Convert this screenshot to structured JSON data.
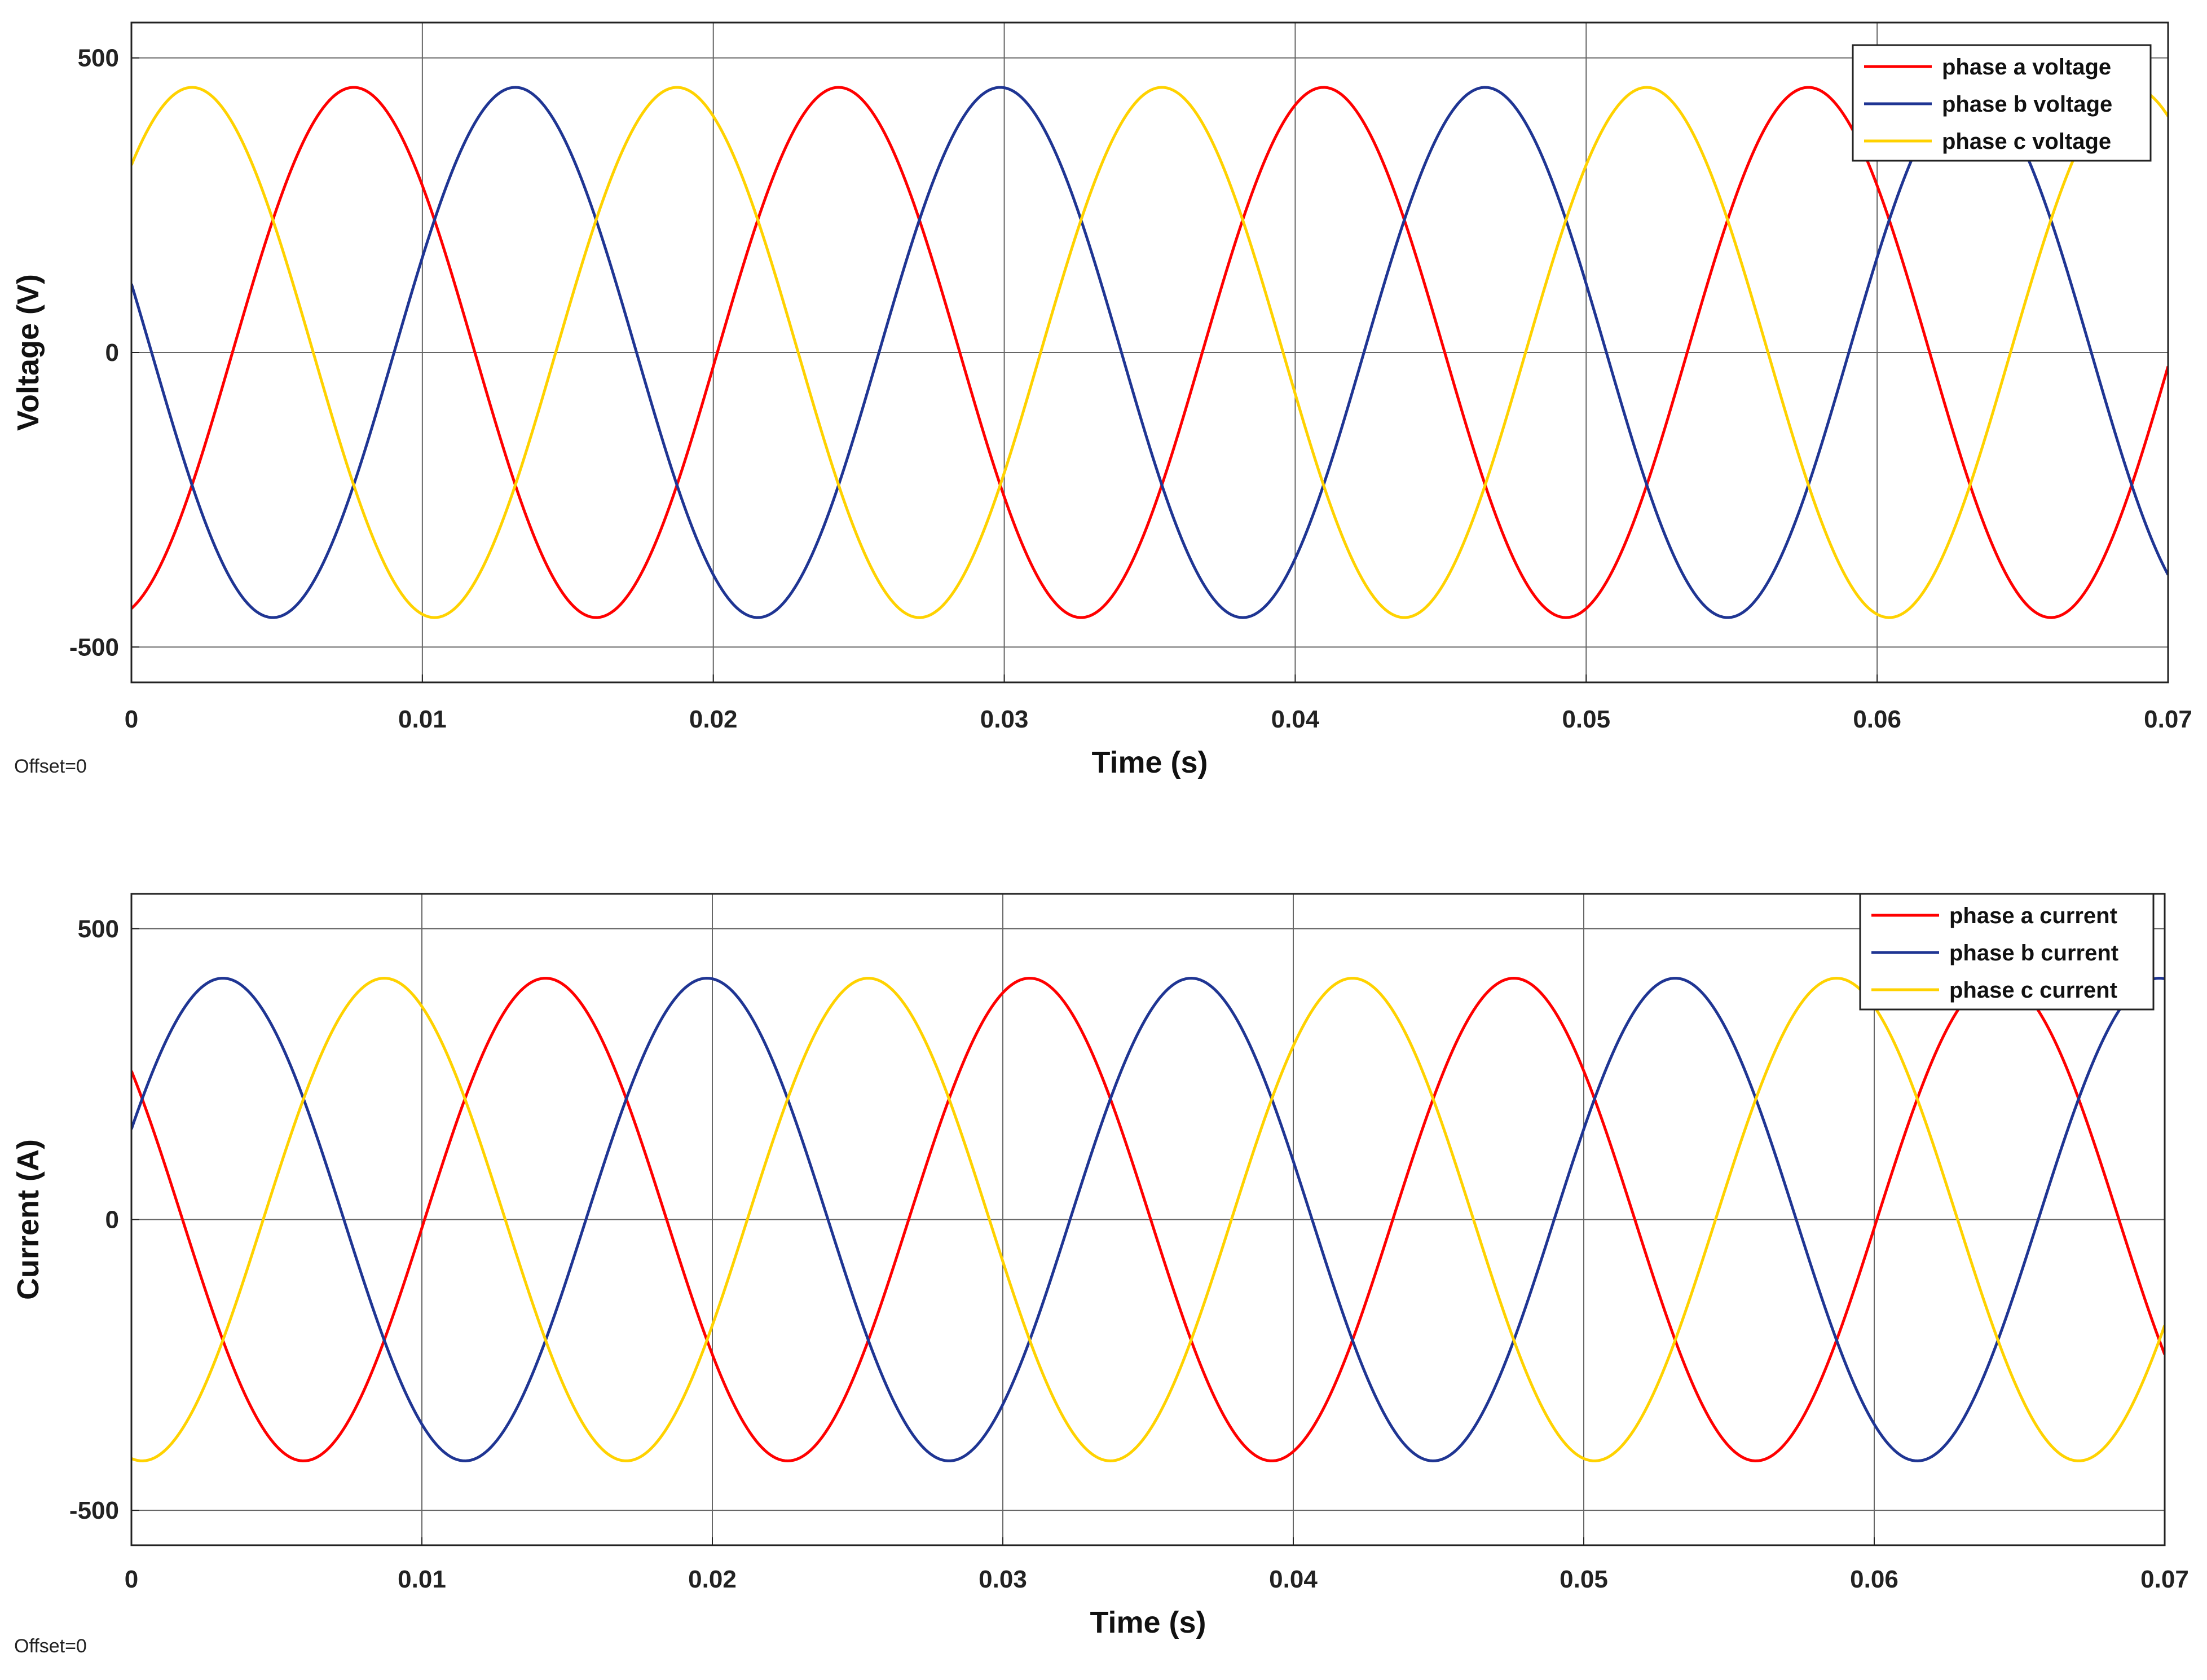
{
  "colors": {
    "phase_a": "#ff0000",
    "phase_b": "#1f3593",
    "phase_c": "#ffd200",
    "grid": "#666666",
    "frame": "#222222"
  },
  "chart_data": [
    {
      "type": "line",
      "xlabel": "Time (s)",
      "ylabel": "Voltage (V)",
      "xlim": [
        0,
        0.07
      ],
      "ylim": [
        -560,
        560
      ],
      "xticks": [
        0,
        0.01,
        0.02,
        0.03,
        0.04,
        0.05,
        0.06,
        0.07
      ],
      "xtick_labels": [
        "0",
        "0.01",
        "0.02",
        "0.03",
        "0.04",
        "0.05",
        "0.06",
        "0.07"
      ],
      "yticks": [
        -500,
        0,
        500
      ],
      "ytick_labels": [
        "-500",
        "0",
        "500"
      ],
      "grid": true,
      "legend": "top-right",
      "offset_label": "Offset=0",
      "x_start": 0,
      "x_end": 0.07,
      "x_step": 0.0001,
      "series": [
        {
          "name": "phase a voltage",
          "amplitude": 450,
          "frequency_hz": 60,
          "phase_deg": -75,
          "color": "#ff0000"
        },
        {
          "name": "phase b voltage",
          "amplitude": 450,
          "frequency_hz": 60,
          "phase_deg": 165,
          "color": "#1f3593"
        },
        {
          "name": "phase c voltage",
          "amplitude": 450,
          "frequency_hz": 60,
          "phase_deg": 45,
          "color": "#ffd200"
        }
      ]
    },
    {
      "type": "line",
      "xlabel": "Time (s)",
      "ylabel": "Current (A)",
      "xlim": [
        0,
        0.07
      ],
      "ylim": [
        -560,
        560
      ],
      "xticks": [
        0,
        0.01,
        0.02,
        0.03,
        0.04,
        0.05,
        0.06,
        0.07
      ],
      "xtick_labels": [
        "0",
        "0.01",
        "0.02",
        "0.03",
        "0.04",
        "0.05",
        "0.06",
        "0.07"
      ],
      "yticks": [
        -500,
        0,
        500
      ],
      "ytick_labels": [
        "-500",
        "0",
        "500"
      ],
      "grid": true,
      "legend": "top-right",
      "offset_label": "Offset=0",
      "x_start": 0,
      "x_end": 0.07,
      "x_step": 0.0001,
      "series": [
        {
          "name": "phase a current",
          "amplitude": 415,
          "frequency_hz": 60,
          "phase_deg": 142,
          "color": "#ff0000"
        },
        {
          "name": "phase b current",
          "amplitude": 415,
          "frequency_hz": 60,
          "phase_deg": 22,
          "color": "#1f3593"
        },
        {
          "name": "phase c current",
          "amplitude": 415,
          "frequency_hz": 60,
          "phase_deg": -98,
          "color": "#ffd200"
        }
      ]
    }
  ]
}
